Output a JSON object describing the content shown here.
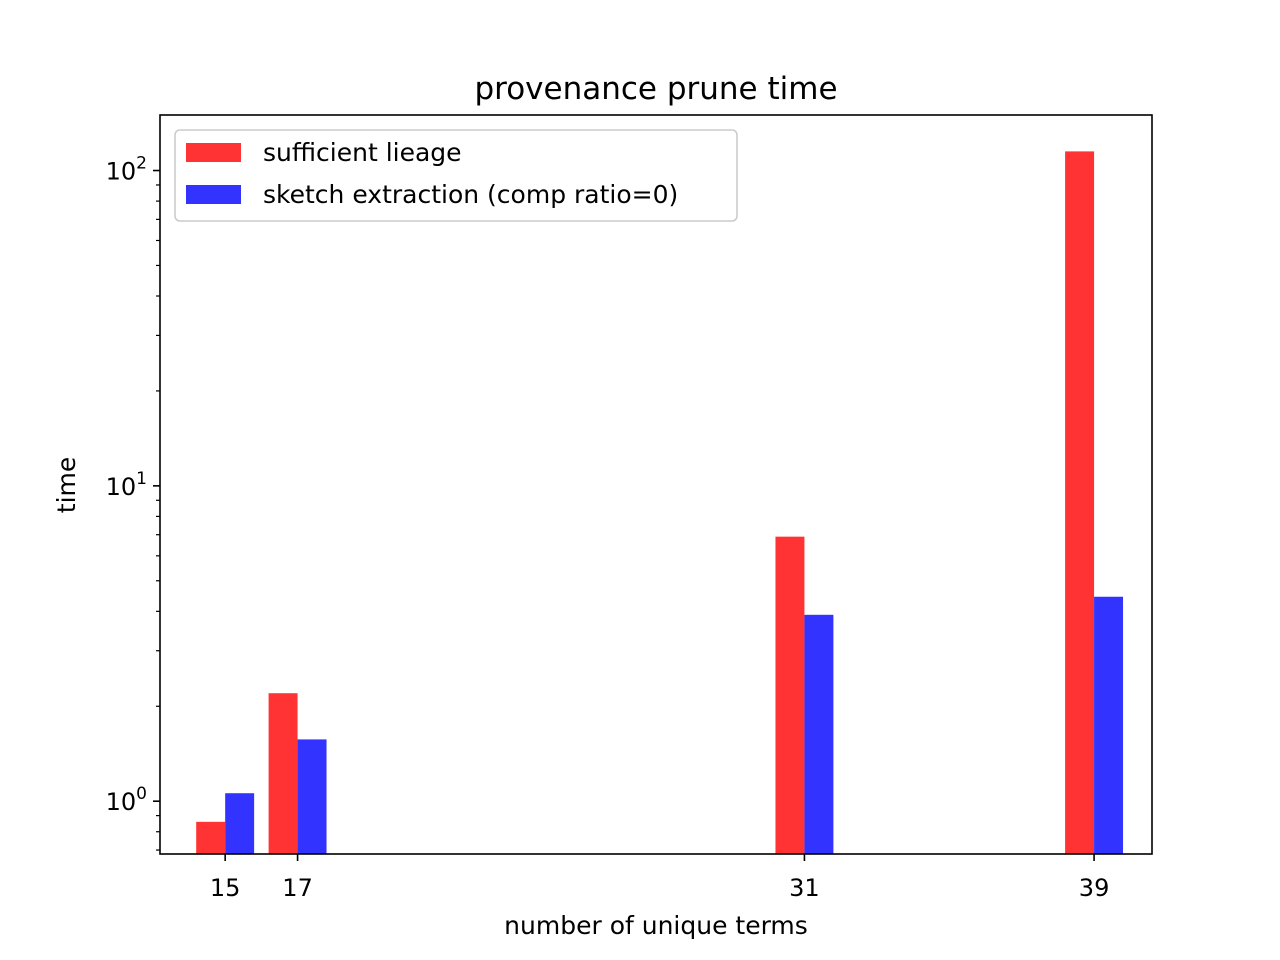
{
  "chart_data": {
    "type": "bar",
    "title": "provenance prune time",
    "xlabel": "number of unique terms",
    "ylabel": "time",
    "yscale": "log",
    "ylim": [
      0.68,
      150
    ],
    "x": [
      15,
      17,
      31,
      39
    ],
    "xlim": [
      13.2,
      40.6
    ],
    "bar_width": 0.8,
    "x_tick_labels": [
      "15",
      "17",
      "31",
      "39"
    ],
    "y_ticks": [
      {
        "value": 1,
        "base": "10",
        "exp": "0"
      },
      {
        "value": 10,
        "base": "10",
        "exp": "1"
      },
      {
        "value": 100,
        "base": "10",
        "exp": "2"
      }
    ],
    "series": [
      {
        "name": "sufficient lieage",
        "color": "#ff3333",
        "values": [
          0.86,
          2.2,
          6.9,
          115
        ]
      },
      {
        "name": "sketch extraction (comp ratio=0)",
        "color": "#3333ff",
        "values": [
          1.06,
          1.57,
          3.9,
          4.45
        ]
      }
    ],
    "legend": "top-left",
    "grid": false
  }
}
